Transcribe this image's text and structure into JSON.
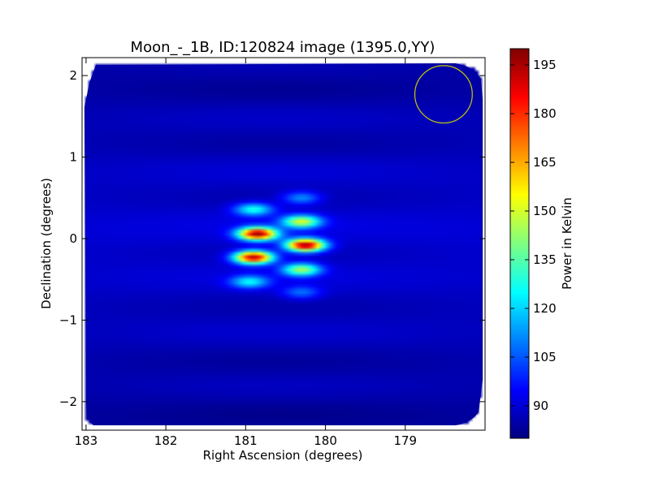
{
  "chart_data": {
    "type": "heatmap",
    "title": "Moon_-_1B, ID:120824 image (1395.0,YY)",
    "xlabel": "Right Ascension (degrees)",
    "ylabel": "Declination (degrees)",
    "colorbar_label": "Power in Kelvin",
    "colormap": "jet",
    "x_range": [
      183.05,
      178.0
    ],
    "y_range": [
      -2.35,
      2.22
    ],
    "c_range": [
      80,
      200
    ],
    "x_ticks": [
      183,
      182,
      181,
      180,
      179
    ],
    "y_ticks": [
      -2,
      -1,
      0,
      1,
      2
    ],
    "c_ticks": [
      90,
      105,
      120,
      135,
      150,
      165,
      180,
      195
    ],
    "x_tick_labels": [
      "183",
      "182",
      "181",
      "180",
      "179"
    ],
    "y_tick_labels": [
      "−2",
      "−1",
      "0",
      "1",
      "2"
    ],
    "c_tick_labels": [
      "90",
      "105",
      "120",
      "135",
      "150",
      "165",
      "180",
      "195"
    ],
    "background_level": 90,
    "beam_circle": {
      "ra": 178.52,
      "dec": 1.77,
      "radius_deg": 0.36,
      "color": "#c8c800"
    },
    "peaks": [
      {
        "ra": 180.25,
        "dec": -0.08,
        "value": 200
      },
      {
        "ra": 180.85,
        "dec": 0.06,
        "value": 197
      },
      {
        "ra": 180.9,
        "dec": -0.23,
        "value": 196
      },
      {
        "ra": 180.3,
        "dec": 0.21,
        "value": 150
      },
      {
        "ra": 180.3,
        "dec": -0.38,
        "value": 145
      },
      {
        "ra": 180.9,
        "dec": 0.36,
        "value": 130
      },
      {
        "ra": 180.95,
        "dec": -0.53,
        "value": 125
      },
      {
        "ra": 180.3,
        "dec": 0.5,
        "value": 115
      },
      {
        "ra": 180.3,
        "dec": -0.66,
        "value": 110
      }
    ]
  }
}
